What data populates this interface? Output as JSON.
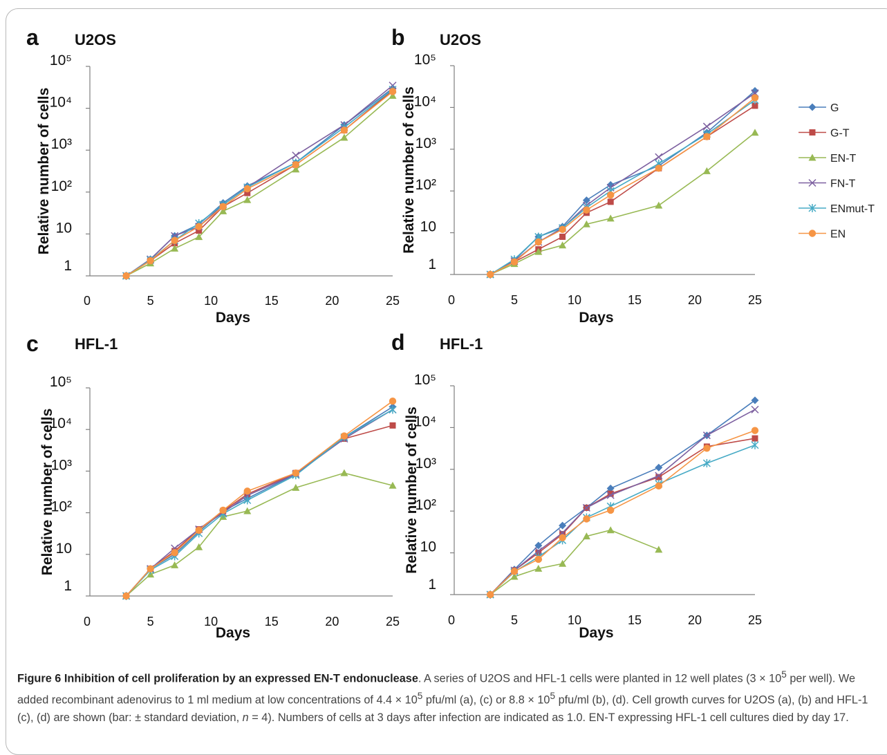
{
  "figure": {
    "caption_title": "Figure 6 Inhibition of cell proliferation by an expressed EN-T endonuclease",
    "caption_text_1": ". A series of U2OS and HFL-1 cells were planted in 12 well plates (3 × 10",
    "caption_sup_1": "5",
    "caption_text_2": " per well). We added recombinant adenovirus to 1 ml medium at low concentrations of 4.4 × 10",
    "caption_sup_2": "5",
    "caption_text_3": " pfu/ml (a), (c) or 8.8 × 10",
    "caption_sup_3": "5",
    "caption_text_4": " pfu/ml (b), (d). Cell growth curves for U2OS (a), (b) and HFL-1 (c), (d) are shown (bar: ± standard deviation, ",
    "caption_italic_n": "n",
    "caption_text_5": " = 4). Numbers of cells at 3 days after infection are indicated as 1.0. EN-T expressing HFL-1 cell cultures died by day 17."
  },
  "legend": [
    {
      "name": "G",
      "color": "#4A7EBB",
      "marker": "diamond"
    },
    {
      "name": "G-T",
      "color": "#BE4B48",
      "marker": "square"
    },
    {
      "name": "EN-T",
      "color": "#98B954",
      "marker": "triangle"
    },
    {
      "name": "FN-T",
      "color": "#7D60A0",
      "marker": "x"
    },
    {
      "name": "ENmut-T",
      "color": "#46AAC5",
      "marker": "asterisk"
    },
    {
      "name": "EN",
      "color": "#F69545",
      "marker": "circle"
    }
  ],
  "chart_data": [
    {
      "type": "line",
      "panel": "a",
      "title": "U2OS",
      "xlabel": "Days",
      "ylabel": "Relative number of cells",
      "x_ticks": [
        0,
        5,
        10,
        15,
        20,
        25
      ],
      "y_ticks": [
        "1",
        "10",
        "10²",
        "10³",
        "10⁴",
        "10⁵"
      ],
      "xlim": [
        0,
        25
      ],
      "ylim": [
        1,
        100000
      ],
      "yscale": "log",
      "grid": false,
      "x": [
        3,
        5,
        7,
        9,
        11,
        13,
        17,
        21,
        25
      ],
      "series": [
        {
          "name": "G",
          "values": [
            1,
            2.5,
            9,
            17,
            55,
            140,
            500,
            4000,
            30000
          ]
        },
        {
          "name": "G-T",
          "values": [
            1,
            2.3,
            6,
            12,
            45,
            95,
            450,
            3000,
            27000
          ]
        },
        {
          "name": "EN-T",
          "values": [
            1,
            2.0,
            4.5,
            8.5,
            35,
            65,
            350,
            2000,
            20000
          ]
        },
        {
          "name": "FN-T",
          "values": [
            1,
            2.5,
            9,
            15,
            50,
            130,
            750,
            4000,
            35000
          ]
        },
        {
          "name": "ENmut-T",
          "values": [
            1,
            2.4,
            7,
            18,
            50,
            130,
            500,
            3500,
            28000
          ]
        },
        {
          "name": "EN",
          "values": [
            1,
            2.3,
            7,
            15,
            45,
            120,
            450,
            3000,
            25000
          ]
        }
      ]
    },
    {
      "type": "line",
      "panel": "b",
      "title": "U2OS",
      "xlabel": "Days",
      "ylabel": "Relative number of cells",
      "x_ticks": [
        0,
        5,
        10,
        15,
        20,
        25
      ],
      "y_ticks": [
        "1",
        "10",
        "10²",
        "10³",
        "10⁴",
        "10⁵"
      ],
      "xlim": [
        0,
        25
      ],
      "ylim": [
        1,
        100000
      ],
      "yscale": "log",
      "grid": false,
      "x": [
        3,
        5,
        7,
        9,
        11,
        13,
        17,
        21,
        25
      ],
      "series": [
        {
          "name": "G",
          "values": [
            1,
            2.2,
            8,
            14,
            60,
            140,
            400,
            2500,
            25000
          ]
        },
        {
          "name": "G-T",
          "values": [
            1,
            2.0,
            4,
            8,
            30,
            55,
            350,
            2000,
            11000
          ]
        },
        {
          "name": "EN-T",
          "values": [
            1,
            1.8,
            3.5,
            5,
            16,
            22,
            45,
            300,
            2500
          ]
        },
        {
          "name": "FN-T",
          "values": [
            1,
            2.1,
            6,
            13,
            45,
            120,
            650,
            3500,
            22000
          ]
        },
        {
          "name": "ENmut-T",
          "values": [
            1,
            2.3,
            8,
            13,
            40,
            100,
            450,
            2300,
            15000
          ]
        },
        {
          "name": "EN",
          "values": [
            1,
            2.0,
            6,
            12,
            35,
            80,
            350,
            2000,
            17000
          ]
        }
      ]
    },
    {
      "type": "line",
      "panel": "c",
      "title": "HFL-1",
      "xlabel": "Days",
      "ylabel": "Relative number of cells",
      "x_ticks": [
        0,
        5,
        10,
        15,
        20,
        25
      ],
      "y_ticks": [
        "1",
        "10",
        "10²",
        "10³",
        "10⁴",
        "10⁵"
      ],
      "xlim": [
        0,
        25
      ],
      "ylim": [
        1,
        100000
      ],
      "yscale": "log",
      "grid": false,
      "x": [
        3,
        5,
        7,
        9,
        11,
        13,
        17,
        21,
        25
      ],
      "series": [
        {
          "name": "G",
          "values": [
            1,
            4.5,
            10,
            35,
            110,
            220,
            850,
            6500,
            35000
          ]
        },
        {
          "name": "G-T",
          "values": [
            1,
            4.5,
            12,
            40,
            110,
            280,
            900,
            6000,
            12500
          ]
        },
        {
          "name": "EN-T",
          "values": [
            1,
            3.3,
            5.5,
            15,
            80,
            110,
            400,
            900,
            450
          ]
        },
        {
          "name": "FN-T",
          "values": [
            1,
            4.5,
            14,
            40,
            100,
            260,
            850,
            6000,
            30000
          ]
        },
        {
          "name": "ENmut-T",
          "values": [
            1,
            4.2,
            9,
            32,
            95,
            200,
            800,
            6500,
            30000
          ]
        },
        {
          "name": "EN",
          "values": [
            1,
            4.5,
            11,
            38,
            115,
            330,
            900,
            7000,
            48000
          ]
        }
      ]
    },
    {
      "type": "line",
      "panel": "d",
      "title": "HFL-1",
      "xlabel": "Days",
      "ylabel": "Relative number of cells",
      "x_ticks": [
        0,
        5,
        10,
        15,
        20,
        25
      ],
      "y_ticks": [
        "1",
        "10",
        "10²",
        "10³",
        "10⁴",
        "10⁵"
      ],
      "xlim": [
        0,
        25
      ],
      "ylim": [
        1,
        100000
      ],
      "yscale": "log",
      "grid": false,
      "x": [
        3,
        5,
        7,
        9,
        11,
        13,
        17,
        21,
        25
      ],
      "series": [
        {
          "name": "G",
          "values": [
            1,
            4,
            15,
            45,
            120,
            350,
            1100,
            6500,
            45000
          ]
        },
        {
          "name": "G-T",
          "values": [
            1,
            3.8,
            10,
            28,
            120,
            260,
            650,
            3500,
            5500
          ]
        },
        {
          "name": "EN-T",
          "values": [
            1,
            2.7,
            4.2,
            5.5,
            25,
            35,
            12,
            null,
            null
          ]
        },
        {
          "name": "FN-T",
          "values": [
            1,
            3.8,
            11,
            30,
            120,
            240,
            700,
            6500,
            27000
          ]
        },
        {
          "name": "ENmut-T",
          "values": [
            1,
            3.5,
            8,
            20,
            70,
            130,
            450,
            1400,
            3800
          ]
        },
        {
          "name": "EN",
          "values": [
            1,
            3.6,
            7,
            23,
            65,
            105,
            400,
            3200,
            8500
          ]
        }
      ]
    }
  ]
}
